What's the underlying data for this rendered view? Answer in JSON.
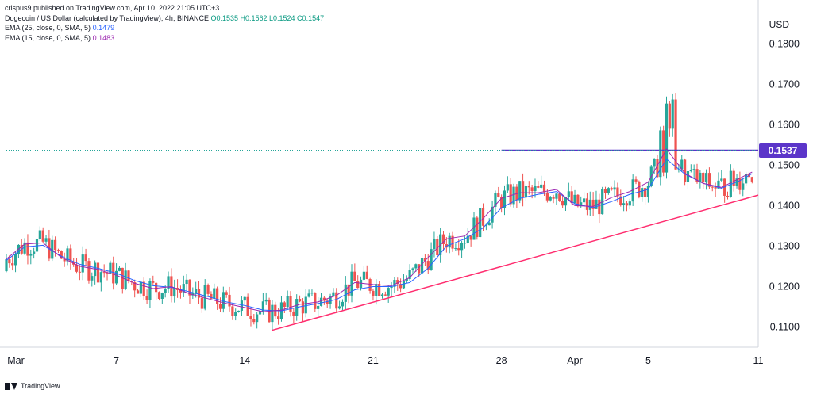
{
  "publisher": "crispus9 published on TradingView.com, Apr 10, 2022 21:05 UTC+3",
  "legend": {
    "symbol_line": "Dogecoin / US Dollar (calculated by TradingView), 4h, BINANCE",
    "ohlc": "O0.1535  H0.1562  L0.1524  C0.1547",
    "ema1_label": "EMA (25, close, 0, SMA, 5)",
    "ema1_value": "0.1479",
    "ema2_label": "EMA (15, close, 0, SMA, 5)",
    "ema2_value": "0.1483"
  },
  "currency": "USD",
  "last_price_label": "0.1537",
  "footer_brand": "TradingView",
  "colors": {
    "up": "#26a69a",
    "down": "#ef5350",
    "ema25": "#2962ff",
    "ema15": "#9c27b0",
    "support": "#ff2d6f",
    "resistance": "#5b35c9",
    "price_line": "#26a69a"
  },
  "chart_data": {
    "type": "candlestick",
    "timeframe": "4h",
    "ylim": [
      0.105,
      0.183
    ],
    "ytick_labels": [
      "0.1800",
      "0.1700",
      "0.1600",
      "0.1500",
      "0.1400",
      "0.1300",
      "0.1200",
      "0.1100"
    ],
    "yticks": [
      0.18,
      0.17,
      0.16,
      0.15,
      0.14,
      0.13,
      0.12,
      0.11
    ],
    "x_start": "2022-03-01",
    "x_end": "2022-04-11",
    "xtick_labels": [
      "Mar",
      "7",
      "14",
      "21",
      "28",
      "Apr",
      "5",
      "11"
    ],
    "xtick_dates": [
      "2022-03-01",
      "2022-03-07",
      "2022-03-14",
      "2022-03-21",
      "2022-03-28",
      "2022-04-01",
      "2022-04-05",
      "2022-04-11"
    ],
    "ema_lines": [
      {
        "name": "EMA (25, close, 0, SMA, 5)",
        "points": [
          [
            "2022-03-01",
            0.1265
          ],
          [
            "2022-03-02",
            0.1298
          ],
          [
            "2022-03-03",
            0.1302
          ],
          [
            "2022-03-04",
            0.1275
          ],
          [
            "2022-03-05",
            0.1255
          ],
          [
            "2022-03-06",
            0.1245
          ],
          [
            "2022-03-07",
            0.1233
          ],
          [
            "2022-03-08",
            0.1215
          ],
          [
            "2022-03-09",
            0.1202
          ],
          [
            "2022-03-10",
            0.1198
          ],
          [
            "2022-03-11",
            0.1187
          ],
          [
            "2022-03-12",
            0.1175
          ],
          [
            "2022-03-13",
            0.1162
          ],
          [
            "2022-03-14",
            0.1153
          ],
          [
            "2022-03-15",
            0.1142
          ],
          [
            "2022-03-16",
            0.114
          ],
          [
            "2022-03-17",
            0.115
          ],
          [
            "2022-03-18",
            0.1158
          ],
          [
            "2022-03-19",
            0.1168
          ],
          [
            "2022-03-20",
            0.1192
          ],
          [
            "2022-03-21",
            0.12
          ],
          [
            "2022-03-22",
            0.12
          ],
          [
            "2022-03-23",
            0.121
          ],
          [
            "2022-03-24",
            0.1245
          ],
          [
            "2022-03-25",
            0.13
          ],
          [
            "2022-03-26",
            0.1318
          ],
          [
            "2022-03-27",
            0.1345
          ],
          [
            "2022-03-28",
            0.1395
          ],
          [
            "2022-03-29",
            0.1418
          ],
          [
            "2022-03-30",
            0.1428
          ],
          [
            "2022-03-31",
            0.1435
          ],
          [
            "2022-04-01",
            0.1405
          ],
          [
            "2022-04-02",
            0.1395
          ],
          [
            "2022-04-03",
            0.141
          ],
          [
            "2022-04-04",
            0.1428
          ],
          [
            "2022-04-05",
            0.144
          ],
          [
            "2022-04-06",
            0.1515
          ],
          [
            "2022-04-07",
            0.1478
          ],
          [
            "2022-04-08",
            0.1455
          ],
          [
            "2022-04-09",
            0.1443
          ],
          [
            "2022-04-10",
            0.1462
          ],
          [
            "2022-04-10T16:00",
            0.1479
          ]
        ]
      },
      {
        "name": "EMA (15, close, 0, SMA, 5)",
        "points": [
          [
            "2022-03-01",
            0.1268
          ],
          [
            "2022-03-02",
            0.1305
          ],
          [
            "2022-03-03",
            0.1308
          ],
          [
            "2022-03-04",
            0.1272
          ],
          [
            "2022-03-05",
            0.125
          ],
          [
            "2022-03-06",
            0.1242
          ],
          [
            "2022-03-07",
            0.1228
          ],
          [
            "2022-03-08",
            0.1208
          ],
          [
            "2022-03-09",
            0.1195
          ],
          [
            "2022-03-10",
            0.12
          ],
          [
            "2022-03-11",
            0.1182
          ],
          [
            "2022-03-12",
            0.117
          ],
          [
            "2022-03-13",
            0.1158
          ],
          [
            "2022-03-14",
            0.1148
          ],
          [
            "2022-03-15",
            0.1138
          ],
          [
            "2022-03-16",
            0.1142
          ],
          [
            "2022-03-17",
            0.1156
          ],
          [
            "2022-03-18",
            0.1162
          ],
          [
            "2022-03-19",
            0.1178
          ],
          [
            "2022-03-20",
            0.121
          ],
          [
            "2022-03-21",
            0.1205
          ],
          [
            "2022-03-22",
            0.1202
          ],
          [
            "2022-03-23",
            0.1222
          ],
          [
            "2022-03-24",
            0.1272
          ],
          [
            "2022-03-25",
            0.1318
          ],
          [
            "2022-03-26",
            0.1325
          ],
          [
            "2022-03-27",
            0.1368
          ],
          [
            "2022-03-28",
            0.1418
          ],
          [
            "2022-03-29",
            0.1432
          ],
          [
            "2022-03-30",
            0.1432
          ],
          [
            "2022-03-31",
            0.144
          ],
          [
            "2022-04-01",
            0.14
          ],
          [
            "2022-04-02",
            0.1398
          ],
          [
            "2022-04-03",
            0.142
          ],
          [
            "2022-04-04",
            0.1435
          ],
          [
            "2022-04-05",
            0.1458
          ],
          [
            "2022-04-06",
            0.154
          ],
          [
            "2022-04-07",
            0.148
          ],
          [
            "2022-04-08",
            0.1455
          ],
          [
            "2022-04-09",
            0.1445
          ],
          [
            "2022-04-10",
            0.1468
          ],
          [
            "2022-04-10T16:00",
            0.1483
          ]
        ]
      }
    ],
    "support_line": [
      [
        "2022-03-15T12:00",
        0.1092
      ],
      [
        "2022-04-11",
        0.1426
      ]
    ],
    "resistance_line": [
      [
        "2022-03-28",
        0.1537
      ],
      [
        "2022-04-11",
        0.1537
      ]
    ],
    "last_price": 0.1537
  }
}
